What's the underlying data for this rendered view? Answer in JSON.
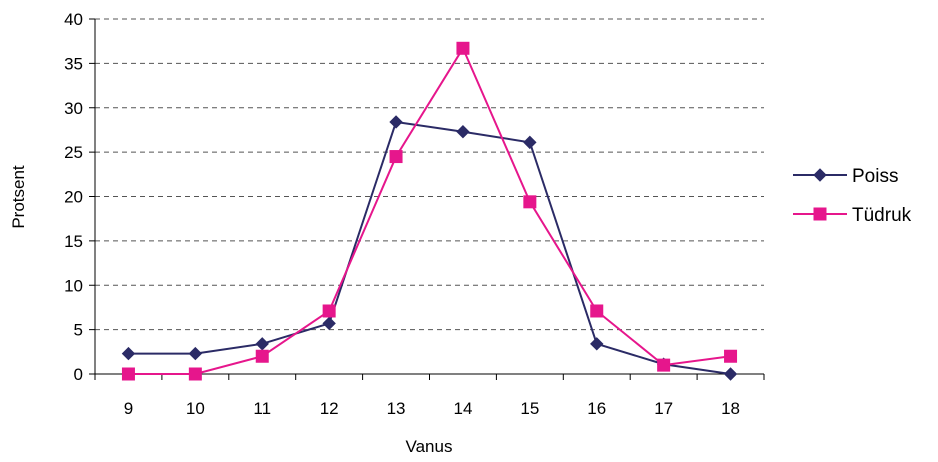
{
  "chart_data": {
    "type": "line",
    "title": "",
    "xlabel": "Vanus",
    "ylabel": "Protsent",
    "x": [
      "9",
      "10",
      "11",
      "12",
      "13",
      "14",
      "15",
      "16",
      "17",
      "18"
    ],
    "ylim": [
      0,
      40
    ],
    "yticks": [
      0,
      5,
      10,
      15,
      20,
      25,
      30,
      35,
      40
    ],
    "grid": "horizontal dashed",
    "legend_position": "right",
    "series": [
      {
        "name": "Poiss",
        "color": "#2b2b66",
        "marker": "diamond",
        "values": [
          2.3,
          2.3,
          3.4,
          5.7,
          28.4,
          27.3,
          26.1,
          3.4,
          1.1,
          0
        ]
      },
      {
        "name": "Tüdruk",
        "color": "#e6168c",
        "marker": "square",
        "values": [
          0,
          0,
          2.0,
          7.1,
          24.5,
          36.7,
          19.4,
          7.1,
          1.0,
          2.0
        ]
      }
    ]
  }
}
